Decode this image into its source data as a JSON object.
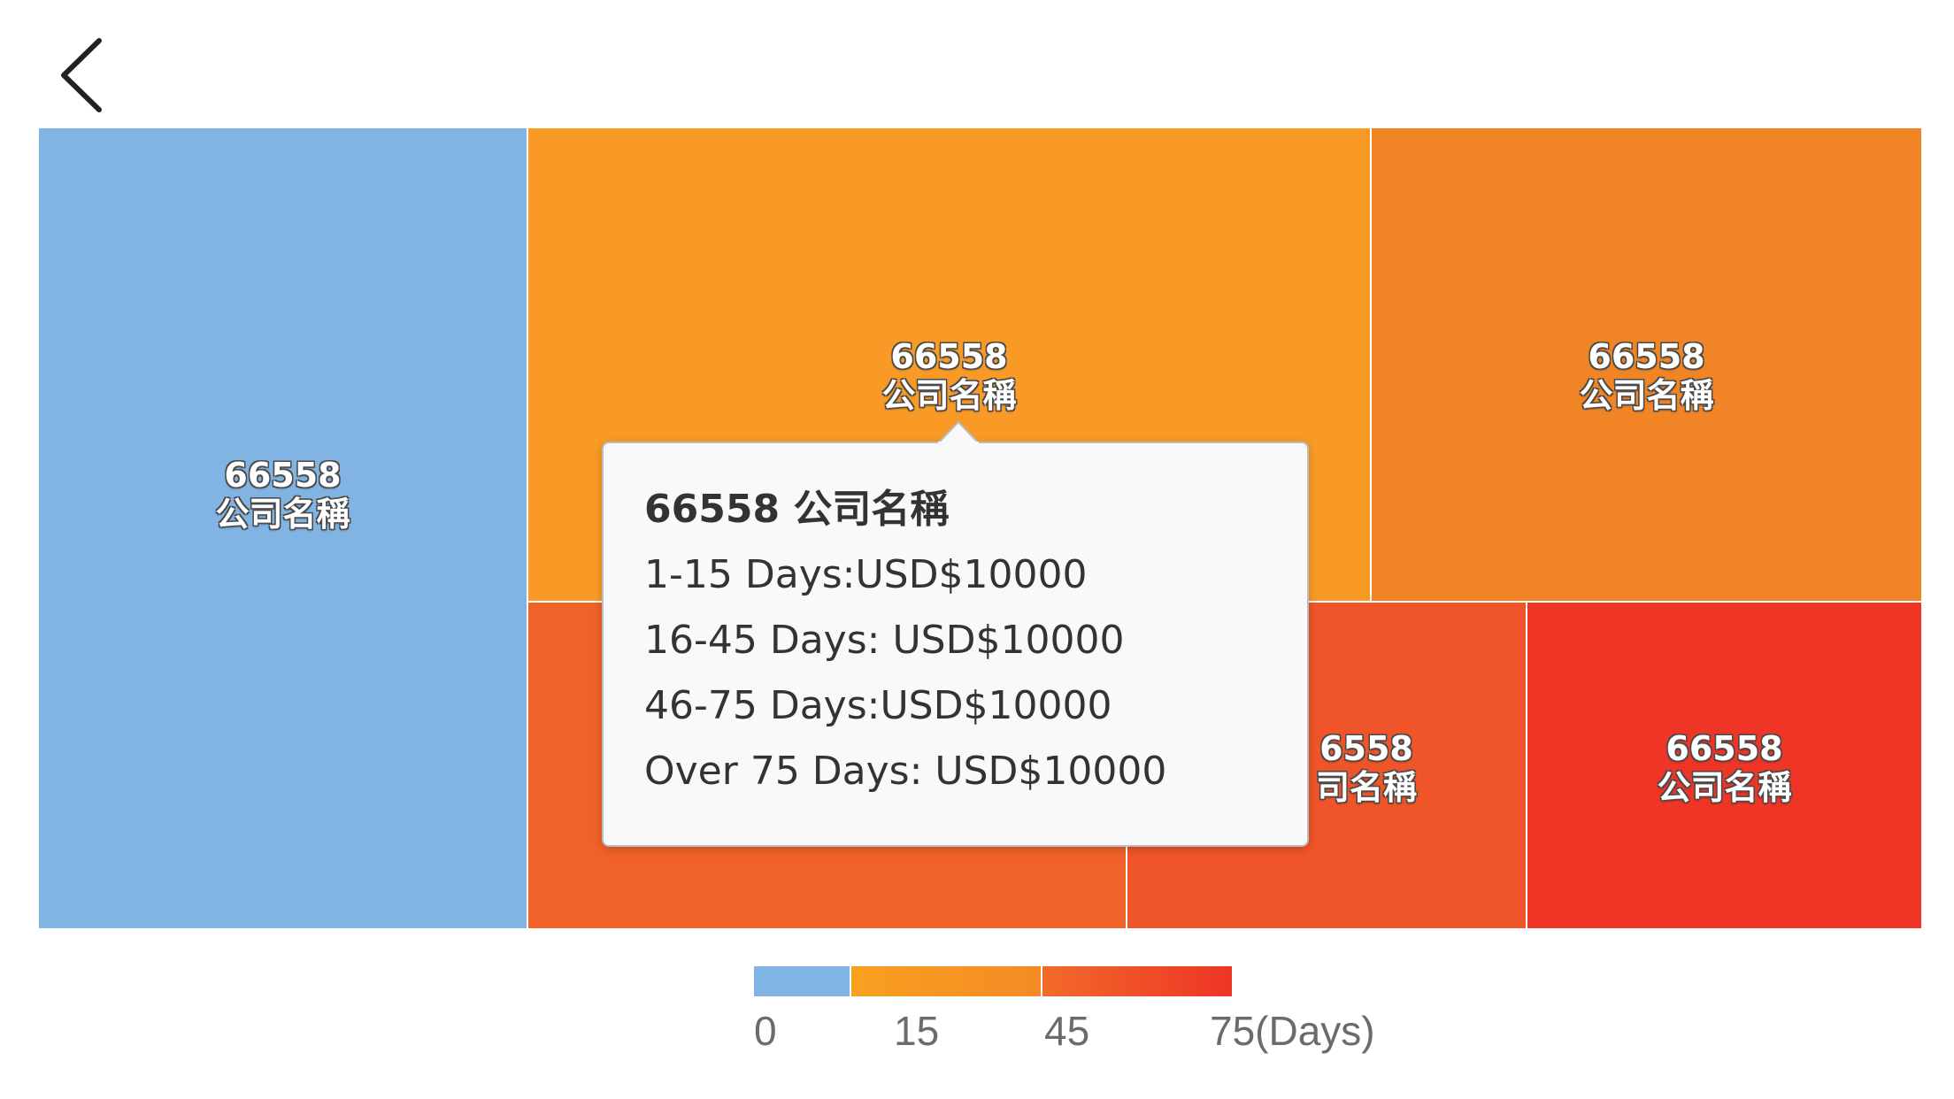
{
  "header": {
    "back_icon": "chevron-left-icon"
  },
  "chart_data": {
    "type": "treemap",
    "tiles": [
      {
        "id": "66558",
        "name": "公司名稱",
        "color": "#82b4e3"
      },
      {
        "id": "66558",
        "name": "公司名稱",
        "color": "#f89a25"
      },
      {
        "id": "66558",
        "name": "公司名稱",
        "color": "#f18526"
      },
      {
        "id": "",
        "name": "",
        "color": "#f06228"
      },
      {
        "id": "6558",
        "name": "司名稱",
        "color": "#ef5529"
      },
      {
        "id": "66558",
        "name": "公司名稱",
        "color": "#ee3526"
      }
    ],
    "tooltip": {
      "title": "66558 公司名稱",
      "rows": [
        "1-15 Days:USD$10000",
        "16-45 Days: USD$10000",
        "46-75 Days:USD$10000",
        "Over 75 Days: USD$10000"
      ]
    },
    "legend": {
      "segments": [
        {
          "from": 0,
          "to": 15,
          "color_start": "#82b4e3",
          "color_end": "#82b4e3"
        },
        {
          "from": 15,
          "to": 45,
          "color_start": "#f9a11f",
          "color_end": "#f58a25"
        },
        {
          "from": 45,
          "to": 75,
          "color_start": "#f26a2a",
          "color_end": "#ee3525"
        }
      ],
      "ticks": [
        "0",
        "15",
        "45",
        "75(Days)"
      ]
    }
  }
}
